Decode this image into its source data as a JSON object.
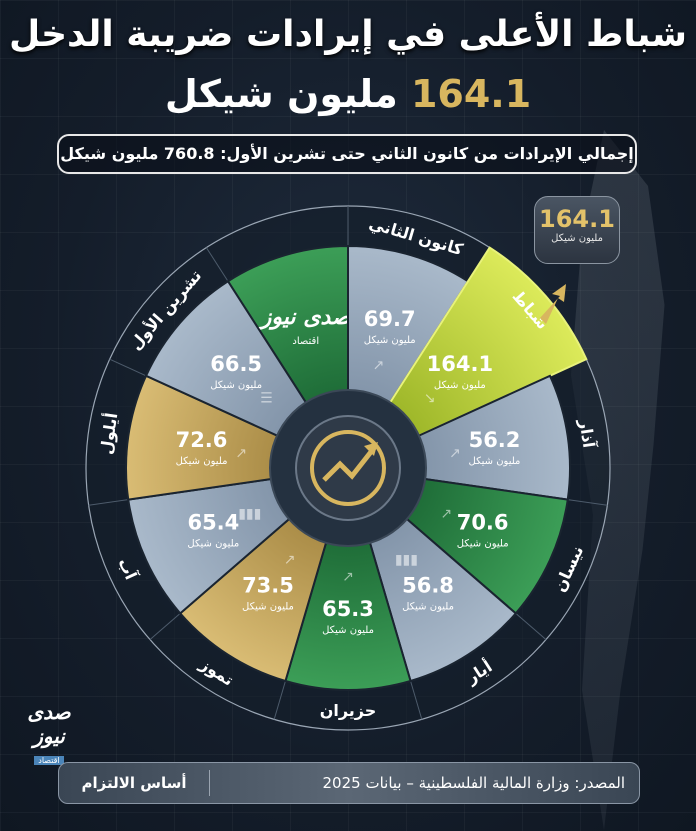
{
  "header": {
    "title": "شباط الأعلى في إيرادات ضريبة الدخل",
    "highlight_value": "164.1",
    "highlight_unit": "مليون شيكل",
    "total_text": "إجمالي الإيرادات من كانون الثاني حتى تشرين الأول: 760.8 مليون شيكل"
  },
  "badge": {
    "value": "164.1",
    "unit": "مليون شيكل"
  },
  "brand": {
    "name": "صدى نيوز",
    "section": "اقتصاد"
  },
  "footer": {
    "source": "المصدر: وزارة المالية الفلسطينية – بيانات 2025",
    "basis": "أساس الالتزام"
  },
  "colors": {
    "blue": "#a9b9ca",
    "green": "#2f8a4a",
    "gold": "#c7a55a",
    "lime": "#c8dc3c",
    "accent": "#d8b65f"
  },
  "chart_data": {
    "type": "polar-segments",
    "unit": "مليون شيكل",
    "categories": [
      "كانون الثاني",
      "شباط",
      "آذار",
      "نيسان",
      "أيار",
      "حزيران",
      "تموز",
      "آب",
      "أيلول",
      "تشرين الأول"
    ],
    "values": [
      69.7,
      164.1,
      56.2,
      70.6,
      56.8,
      65.3,
      73.5,
      65.4,
      72.6,
      66.5
    ],
    "segment_colors": [
      "blue",
      "lime",
      "blue",
      "green",
      "blue",
      "green",
      "gold",
      "blue",
      "gold",
      "blue"
    ],
    "icons": [
      "trend-up-icon",
      "trend-down-icon",
      "trend-up-icon",
      "trend-up-icon",
      "bar-chart-icon",
      "trend-up-icon",
      "trend-up-icon",
      "bar-chart-icon",
      "trend-up-icon",
      "list-icon"
    ],
    "highlight": "شباط",
    "center_icon": "growth-chart-icon"
  }
}
